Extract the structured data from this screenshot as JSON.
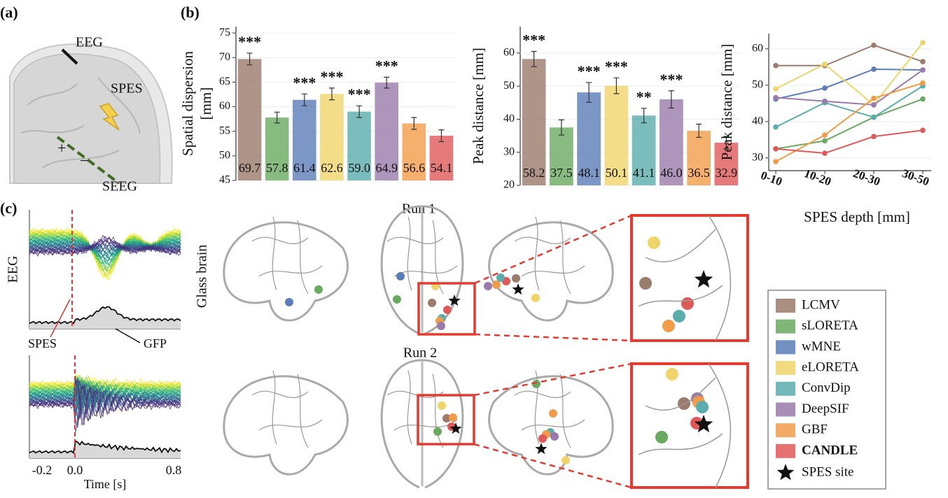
{
  "chart_data": [
    {
      "type": "bar",
      "ylabel": [
        "Spatial dispersion",
        "[mm]"
      ],
      "categories": [
        "LCMV",
        "sLORETA",
        "wMNE",
        "eLORETA",
        "ConvDip",
        "DeepSIF",
        "GBF",
        "CANDLE"
      ],
      "values": [
        69.7,
        57.8,
        61.4,
        62.6,
        59.0,
        64.9,
        56.6,
        54.1
      ],
      "value_labels": [
        "69.7",
        "57.8",
        "61.4",
        "62.6",
        "59.0",
        "64.9",
        "56.6",
        "54.1"
      ],
      "errors": [
        1.2,
        1.1,
        1.2,
        1.2,
        1.2,
        1.1,
        1.2,
        1.2
      ],
      "stars": [
        "***",
        null,
        "***",
        "***",
        "***",
        "***",
        null,
        null
      ],
      "colors": [
        "#9b7b6b",
        "#6aaa60",
        "#5b7db8",
        "#f0d46a",
        "#5aadad",
        "#9a7bab",
        "#f29c4a",
        "#e05858"
      ],
      "ylim": [
        45,
        76.3
      ],
      "yticks": [
        45,
        50,
        55,
        60,
        65,
        70,
        75
      ],
      "grid": true
    },
    {
      "type": "bar",
      "ylabel": [
        "Peak distance  [mm]"
      ],
      "categories": [
        "LCMV",
        "sLORETA",
        "wMNE",
        "eLORETA",
        "ConvDip",
        "DeepSIF",
        "GBF",
        "CANDLE"
      ],
      "values": [
        58.2,
        37.5,
        48.1,
        50.1,
        41.1,
        46.0,
        36.5,
        32.9
      ],
      "value_labels": [
        "58.2",
        "37.5",
        "48.1",
        "50.1",
        "41.1",
        "46.0",
        "36.5",
        "32.9"
      ],
      "errors": [
        2.3,
        2.3,
        3.0,
        2.4,
        2.2,
        2.6,
        2.0,
        1.9
      ],
      "stars": [
        "***",
        null,
        "***",
        "***",
        "**",
        "***",
        null,
        null
      ],
      "colors": [
        "#9b7b6b",
        "#6aaa60",
        "#5b7db8",
        "#f0d46a",
        "#5aadad",
        "#9a7bab",
        "#f29c4a",
        "#e05858"
      ],
      "ylim": [
        20,
        68
      ],
      "yticks": [
        20,
        30,
        40,
        50,
        60
      ],
      "grid": true
    },
    {
      "type": "line",
      "ylabel": [
        "Peak distance  [mm]"
      ],
      "xlabel": "SPES depth [mm]",
      "categories": [
        "0-10",
        "10-20",
        "20-30",
        "30-50"
      ],
      "series": [
        {
          "name": "LCMV",
          "color": "#9b7b6b",
          "values": [
            55.4,
            55.4,
            61.0,
            56.5
          ]
        },
        {
          "name": "sLORETA",
          "color": "#6aaa60",
          "values": [
            32.5,
            34.7,
            41.2,
            46.2
          ]
        },
        {
          "name": "wMNE",
          "color": "#5b7db8",
          "values": [
            46.2,
            49.2,
            54.4,
            54.2
          ]
        },
        {
          "name": "eLORETA",
          "color": "#f0d46a",
          "values": [
            49.0,
            55.8,
            44.6,
            61.7
          ]
        },
        {
          "name": "ConvDip",
          "color": "#5aadad",
          "values": [
            38.5,
            45.2,
            41.2,
            49.8
          ]
        },
        {
          "name": "DeepSIF",
          "color": "#9a7bab",
          "values": [
            46.6,
            45.6,
            44.6,
            54.2
          ]
        },
        {
          "name": "GBF",
          "color": "#f29c4a",
          "values": [
            29.0,
            36.3,
            46.4,
            50.6
          ]
        },
        {
          "name": "CANDLE",
          "color": "#e05858",
          "values": [
            32.5,
            31.3,
            35.9,
            37.6
          ],
          "bold": true
        }
      ],
      "ylim": [
        26.5,
        64.2
      ],
      "yticks": [
        30,
        40,
        50,
        60
      ],
      "grid": true
    }
  ],
  "panel_labels": [
    "(a)",
    "(b)",
    "(c)"
  ],
  "illustration": {
    "eeg": "EEG",
    "spes": "SPES",
    "seeg": "SEEG",
    "plus": "+",
    "minus": "−"
  },
  "eeg_panel": {
    "ylabel": "EEG",
    "spes": "SPES",
    "gfp": "GFP",
    "xticks": [
      "-0.2",
      "0.0",
      "0.8"
    ],
    "xlabel": "Time [s]"
  },
  "glass_brain": {
    "label": "Glass brain",
    "runs": [
      "Run 1",
      "Run 2"
    ]
  },
  "legend": {
    "marker_label": "SPES site"
  }
}
